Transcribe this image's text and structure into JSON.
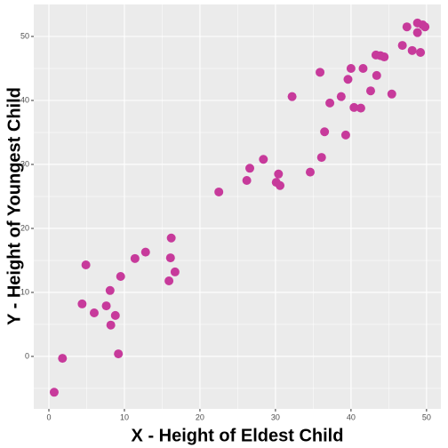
{
  "chart_data": {
    "type": "scatter",
    "xlabel": "X - Height of Eldest Child",
    "ylabel": "Y - Height of Youngest Child",
    "color": "#c73a9b",
    "x": [
      0.7,
      1.8,
      4.9,
      4.4,
      6.0,
      7.6,
      8.1,
      8.2,
      8.8,
      9.2,
      9.5,
      11.4,
      12.8,
      15.9,
      16.1,
      16.2,
      16.7,
      22.5,
      26.2,
      26.6,
      28.4,
      30.1,
      30.4,
      30.6,
      32.2,
      34.6,
      35.9,
      36.1,
      36.5,
      37.2,
      38.7,
      39.3,
      39.6,
      40.0,
      40.4,
      41.3,
      41.6,
      42.6,
      43.3,
      43.4,
      43.9,
      44.4,
      45.4,
      46.8,
      47.4,
      48.1,
      48.8,
      48.8,
      49.2,
      49.5,
      49.8
    ],
    "values": [
      -5.6,
      -0.3,
      14.3,
      8.2,
      6.8,
      7.9,
      10.3,
      4.9,
      6.4,
      0.4,
      12.5,
      15.3,
      16.3,
      11.8,
      15.4,
      18.5,
      13.2,
      25.7,
      27.5,
      29.4,
      30.8,
      27.2,
      28.5,
      26.7,
      40.6,
      28.8,
      44.4,
      31.1,
      35.1,
      39.6,
      40.6,
      34.6,
      43.3,
      45.0,
      38.9,
      38.8,
      45.0,
      41.5,
      47.1,
      43.9,
      47.0,
      46.8,
      41.0,
      48.6,
      51.5,
      47.8,
      52.1,
      50.6,
      47.5,
      51.8,
      51.5
    ],
    "xlim": [
      -2,
      51.9
    ],
    "ylim": [
      -8.2,
      55
    ],
    "xticks": [
      0,
      10,
      20,
      30,
      40,
      50
    ],
    "yticks": [
      0,
      10,
      20,
      30,
      40,
      50
    ],
    "grid": true
  }
}
